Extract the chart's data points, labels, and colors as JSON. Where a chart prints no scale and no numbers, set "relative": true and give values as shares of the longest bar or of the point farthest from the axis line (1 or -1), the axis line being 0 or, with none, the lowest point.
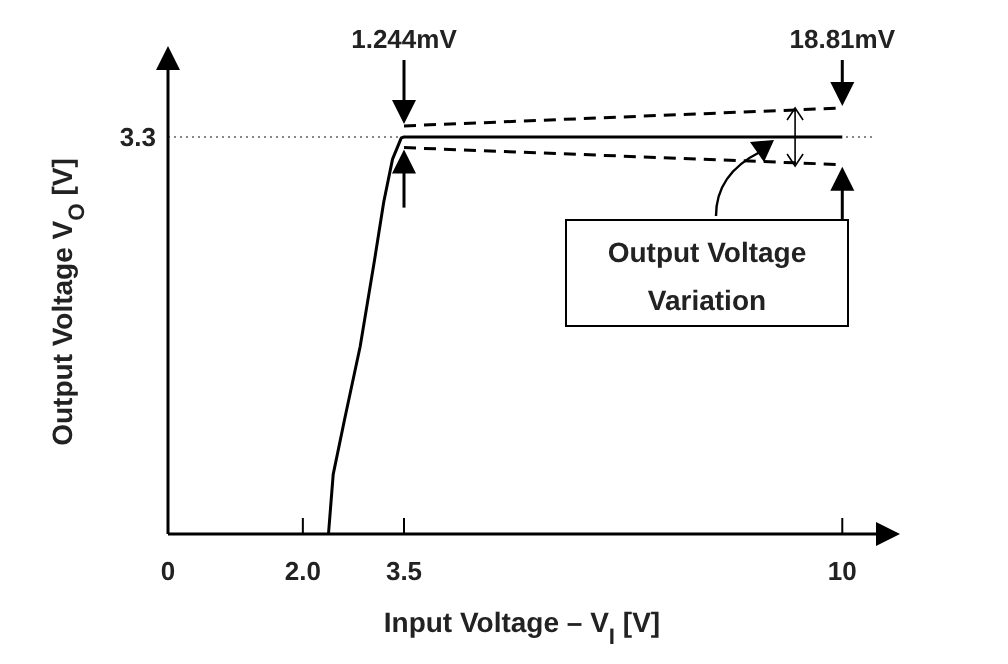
{
  "chart_data": {
    "type": "line",
    "xlabel": "Input Voltage – V$_{I}$ [V]",
    "ylabel": "Output Voltage V$_{O}$ [V]",
    "xlim": [
      0,
      10.5
    ],
    "xticks": [
      0,
      {
        "value": 2,
        "label": "2.0"
      },
      3.5,
      10
    ],
    "relative": true,
    "marker": "none",
    "ref_lines": [
      {
        "axis": "y",
        "value": 0.932,
        "line_style": "dotted",
        "color": "#888888"
      }
    ],
    "series": [
      {
        "color": "#000000",
        "line_style": "solid",
        "x": [
          2.38,
          2.45,
          2.62,
          2.85,
          3.06,
          3.2,
          3.33,
          3.46,
          3.5,
          10
        ],
        "values": [
          0,
          0.14,
          0.27,
          0.44,
          0.64,
          0.78,
          0.88,
          0.93,
          0.932,
          0.932
        ]
      },
      {
        "color": "#000000",
        "line_style": "dashed",
        "x": [
          3.5,
          10
        ],
        "values": [
          0.958,
          1
        ]
      },
      {
        "color": "#000000",
        "line_style": "dashed",
        "x": [
          3.5,
          10
        ],
        "values": [
          0.907,
          0.867
        ]
      }
    ],
    "annotations": [
      {
        "text": "3.3",
        "x": 0,
        "y": 0.932
      },
      {
        "text": "1.244mV",
        "x": 3.5,
        "y": 0.958
      },
      {
        "text": "18.81mV",
        "x": 10,
        "y": 1
      },
      "Output Voltage Variation"
    ]
  }
}
